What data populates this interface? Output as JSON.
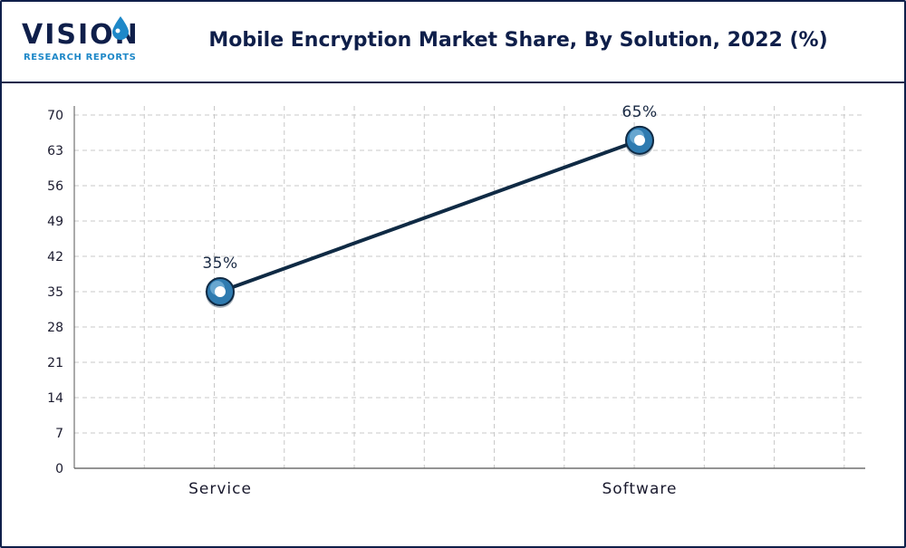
{
  "brand": {
    "name": "VISION",
    "sub": "RESEARCH REPORTS"
  },
  "chart_data": {
    "type": "line",
    "title": "Mobile Encryption Market Share, By Solution, 2022 (%)",
    "categories": [
      "Service",
      "Software"
    ],
    "values": [
      35,
      65
    ],
    "labels": [
      "35%",
      "65%"
    ],
    "yticks": [
      0,
      7,
      14,
      21,
      28,
      35,
      42,
      49,
      56,
      63,
      70
    ],
    "ylim": [
      0,
      70
    ],
    "xlabel": "",
    "ylabel": "",
    "grid": true,
    "colors": {
      "line": "#0f2a44",
      "marker_outer": "#2f7bb0",
      "marker_inner": "#ffffff",
      "grid": "#c8c8c8",
      "axis": "#555555"
    }
  }
}
